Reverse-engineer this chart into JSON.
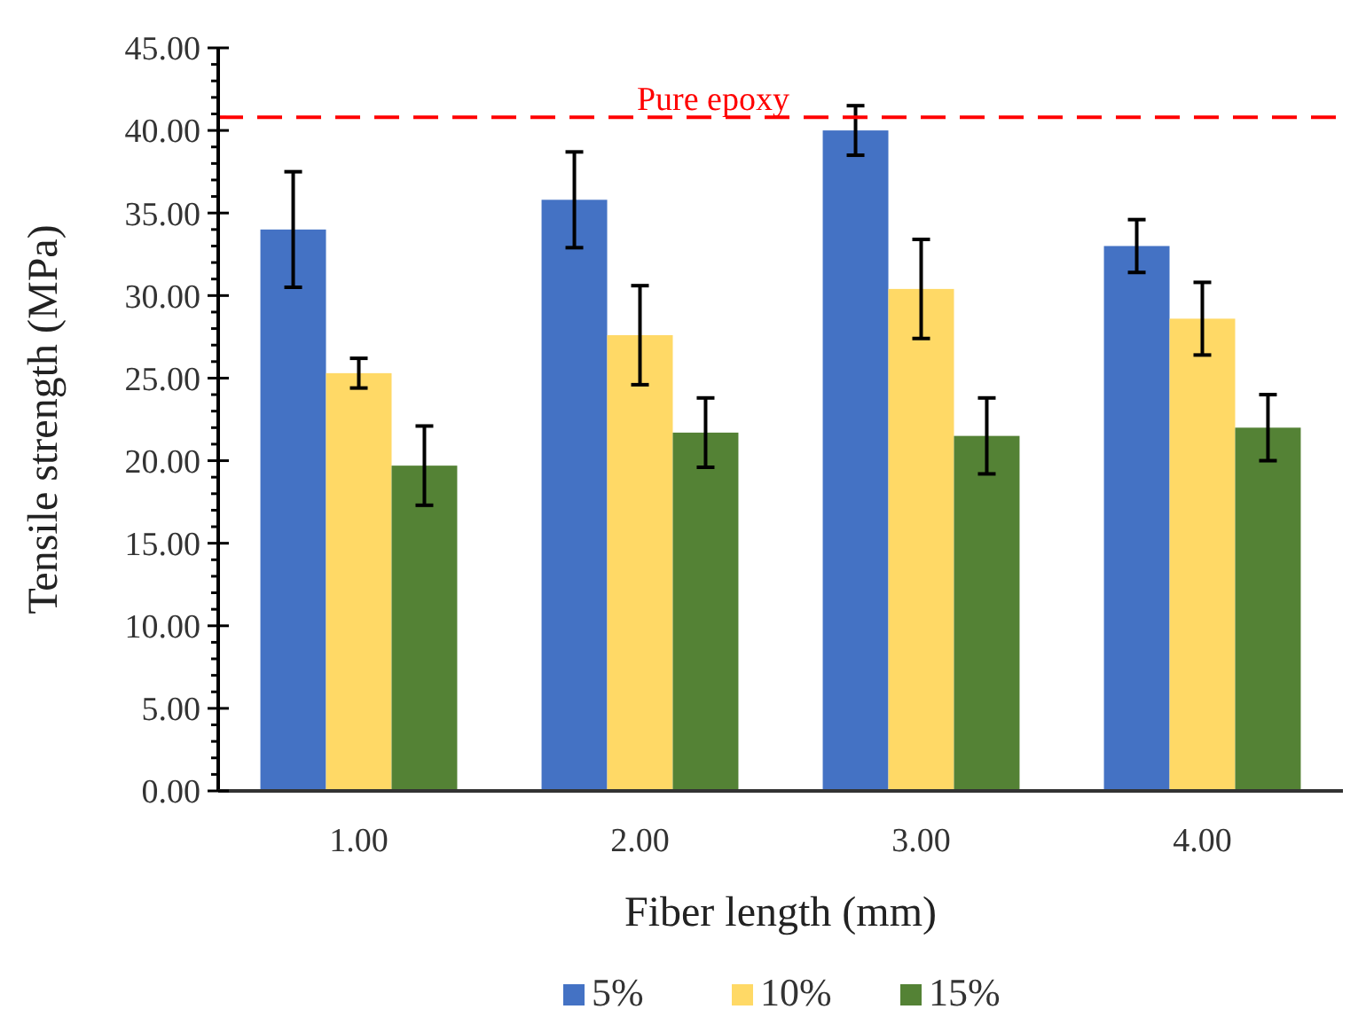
{
  "chart_data": {
    "type": "bar",
    "xlabel": "Fiber length (mm)",
    "ylabel": "Tensile strength (MPa)",
    "categories": [
      "1.00",
      "2.00",
      "3.00",
      "4.00"
    ],
    "series": [
      {
        "name": "5%",
        "color": "#4472c4",
        "values": [
          34.0,
          35.8,
          40.0,
          33.0
        ],
        "errors": [
          3.5,
          2.9,
          1.5,
          1.6
        ]
      },
      {
        "name": "10%",
        "color": "#ffd966",
        "values": [
          25.3,
          27.6,
          30.4,
          28.6
        ],
        "errors": [
          0.9,
          3.0,
          3.0,
          2.2
        ]
      },
      {
        "name": "15%",
        "color": "#548235",
        "values": [
          19.7,
          21.7,
          21.5,
          22.0
        ],
        "errors": [
          2.4,
          2.1,
          2.3,
          2.0
        ]
      }
    ],
    "ylim": [
      0,
      45
    ],
    "yticks": [
      {
        "value": 0,
        "label": "0.00"
      },
      {
        "value": 1,
        "label": null
      },
      {
        "value": 2,
        "label": null
      },
      {
        "value": 3,
        "label": null
      },
      {
        "value": 4,
        "label": null
      },
      {
        "value": 5,
        "label": "5.00"
      },
      {
        "value": 6,
        "label": null
      },
      {
        "value": 7,
        "label": null
      },
      {
        "value": 8,
        "label": null
      },
      {
        "value": 9,
        "label": null
      },
      {
        "value": 10,
        "label": "10.00"
      },
      {
        "value": 11,
        "label": null
      },
      {
        "value": 12,
        "label": null
      },
      {
        "value": 13,
        "label": null
      },
      {
        "value": 14,
        "label": null
      },
      {
        "value": 15,
        "label": "15.00"
      },
      {
        "value": 16,
        "label": null
      },
      {
        "value": 17,
        "label": null
      },
      {
        "value": 18,
        "label": null
      },
      {
        "value": 19,
        "label": null
      },
      {
        "value": 20,
        "label": "20.00"
      },
      {
        "value": 21,
        "label": null
      },
      {
        "value": 22,
        "label": null
      },
      {
        "value": 23,
        "label": null
      },
      {
        "value": 24,
        "label": null
      },
      {
        "value": 25,
        "label": "25.00"
      },
      {
        "value": 26,
        "label": null
      },
      {
        "value": 27,
        "label": null
      },
      {
        "value": 28,
        "label": null
      },
      {
        "value": 29,
        "label": null
      },
      {
        "value": 30,
        "label": "30.00"
      },
      {
        "value": 31,
        "label": null
      },
      {
        "value": 32,
        "label": null
      },
      {
        "value": 33,
        "label": null
      },
      {
        "value": 34,
        "label": null
      },
      {
        "value": 35,
        "label": "35.00"
      },
      {
        "value": 36,
        "label": null
      },
      {
        "value": 37,
        "label": null
      },
      {
        "value": 38,
        "label": null
      },
      {
        "value": 39,
        "label": null
      },
      {
        "value": 40,
        "label": "40.00"
      },
      {
        "value": 41,
        "label": null
      },
      {
        "value": 42,
        "label": null
      },
      {
        "value": 43,
        "label": null
      },
      {
        "value": 44,
        "label": null
      },
      {
        "value": 45,
        "label": "45.00"
      }
    ],
    "ref_lines": [
      {
        "axis": "y",
        "value": 40.8,
        "label": "Pure epoxy",
        "color": "#ff0000",
        "line_style": "dashed"
      }
    ],
    "legend": "bottom",
    "grid": false
  }
}
